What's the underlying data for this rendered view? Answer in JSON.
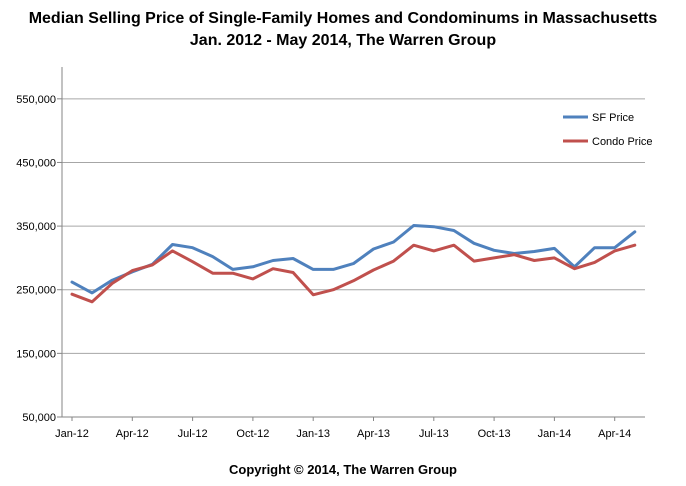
{
  "title": "Median Selling Price of Single-Family Homes and Condominums in Massachusetts",
  "subtitle": "Jan. 2012 - May 2014, The Warren Group",
  "footer": "Copyright © 2014, The Warren Group",
  "colors": {
    "sf": "#4f81bd",
    "condo": "#c0504d",
    "grid": "#a6a6a6",
    "axis": "#868686"
  },
  "chart_data": {
    "type": "line",
    "title": "Median Selling Price of Single-Family Homes and Condominums in Massachusetts",
    "subtitle": "Jan. 2012 - May 2014, The Warren Group",
    "xlabel": "",
    "ylabel": "",
    "ylim": [
      50000,
      600000
    ],
    "y_ticks": [
      50000,
      150000,
      250000,
      350000,
      450000,
      550000
    ],
    "y_tick_labels": [
      "50,000",
      "150,000",
      "250,000",
      "350,000",
      "450,000",
      "550,000"
    ],
    "x_tick_labels": [
      {
        "index": 0,
        "label": "Jan-12"
      },
      {
        "index": 3,
        "label": "Apr-12"
      },
      {
        "index": 6,
        "label": "Jul-12"
      },
      {
        "index": 9,
        "label": "Oct-12"
      },
      {
        "index": 12,
        "label": "Jan-13"
      },
      {
        "index": 15,
        "label": "Apr-13"
      },
      {
        "index": 18,
        "label": "Jul-13"
      },
      {
        "index": 21,
        "label": "Oct-13"
      },
      {
        "index": 24,
        "label": "Jan-14"
      },
      {
        "index": 27,
        "label": "Apr-14"
      }
    ],
    "grid": "horizontal",
    "legend_position": "top-right",
    "categories": [
      "Jan-12",
      "Feb-12",
      "Mar-12",
      "Apr-12",
      "May-12",
      "Jun-12",
      "Jul-12",
      "Aug-12",
      "Sep-12",
      "Oct-12",
      "Nov-12",
      "Dec-12",
      "Jan-13",
      "Feb-13",
      "Mar-13",
      "Apr-13",
      "May-13",
      "Jun-13",
      "Jul-13",
      "Aug-13",
      "Sep-13",
      "Oct-13",
      "Nov-13",
      "Dec-13",
      "Jan-14",
      "Feb-14",
      "Mar-14",
      "Apr-14",
      "May-14"
    ],
    "series": [
      {
        "name": "SF Price",
        "color": "#4f81bd",
        "values": [
          262000,
          245000,
          265000,
          278000,
          290000,
          321000,
          316000,
          302000,
          282000,
          286000,
          296000,
          299000,
          282000,
          282000,
          291000,
          314000,
          325000,
          351000,
          349000,
          343000,
          323000,
          312000,
          307000,
          310000,
          315000,
          286000,
          316000,
          316000,
          341000
        ]
      },
      {
        "name": "Condo Price",
        "color": "#c0504d",
        "values": [
          243000,
          231000,
          260000,
          280000,
          289000,
          311000,
          294000,
          276000,
          276000,
          267000,
          283000,
          277000,
          242000,
          250000,
          264000,
          281000,
          295000,
          320000,
          311000,
          320000,
          295000,
          300000,
          305000,
          296000,
          300000,
          283000,
          293000,
          311000,
          320000
        ]
      }
    ]
  }
}
